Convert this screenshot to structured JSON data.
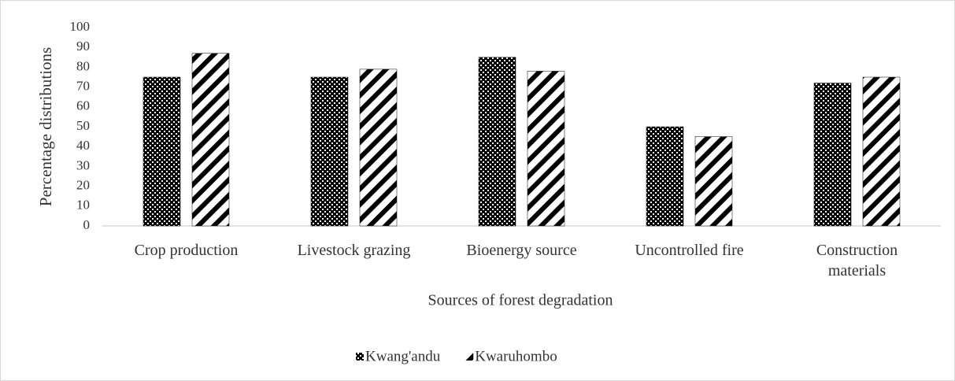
{
  "chart_data": {
    "type": "bar",
    "x_label": "Sources of forest degradation",
    "y_label": "Percentage distributions",
    "categories": [
      "Crop production",
      "Livestock grazing",
      "Bioenergy source",
      "Uncontrolled fire",
      "Construction materials"
    ],
    "series": [
      {
        "name": "Kwang'andu",
        "color": "#000000",
        "pattern": "dots",
        "values": [
          75,
          75,
          85,
          50,
          72
        ]
      },
      {
        "name": "Kwaruhombo",
        "color": "#000000",
        "pattern": "stripes",
        "values": [
          87,
          79,
          78,
          45,
          75
        ]
      }
    ],
    "ylim": [
      0,
      100
    ],
    "yticks": [
      0,
      10,
      20,
      30,
      40,
      50,
      60,
      70,
      80,
      90,
      100
    ],
    "legend": "bottom"
  }
}
